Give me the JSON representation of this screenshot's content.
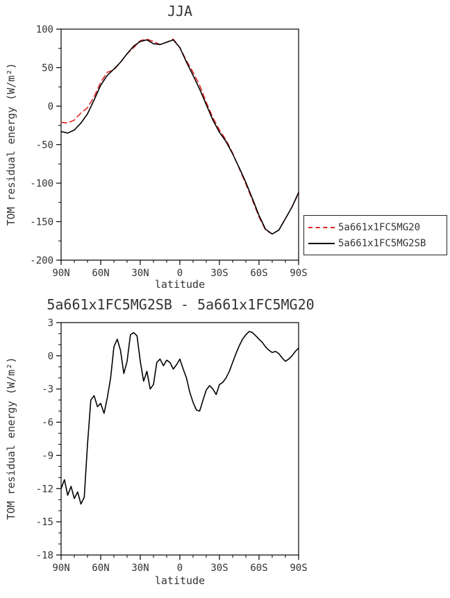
{
  "colors": {
    "series_red": "#dd2222",
    "series_black": "#000000",
    "text": "#333333",
    "frame": "#000000",
    "background": "#ffffff"
  },
  "chart_data": [
    {
      "type": "line",
      "title": "JJA",
      "xlabel": "latitude",
      "ylabel": "TOM residual energy (W/m²)",
      "ylim": [
        -200,
        100
      ],
      "yticks": [
        100,
        50,
        0,
        -50,
        -100,
        -150,
        -200
      ],
      "ytick_labels": [
        "100",
        "50",
        "0",
        "-50",
        "-100",
        "-150",
        "-200"
      ],
      "xticks": [
        90,
        60,
        30,
        0,
        -30,
        -60,
        -90
      ],
      "xtick_labels": [
        "90N",
        "60N",
        "30N",
        "0",
        "30S",
        "60S",
        "90S"
      ],
      "xminor_step": 10,
      "yminor_step": 25,
      "grid": false,
      "legend_position": "right",
      "x": [
        90,
        85,
        80,
        75,
        70,
        65,
        60,
        55,
        50,
        45,
        40,
        35,
        30,
        25,
        20,
        15,
        10,
        5,
        0,
        -5,
        -10,
        -15,
        -20,
        -25,
        -30,
        -35,
        -40,
        -45,
        -50,
        -55,
        -60,
        -65,
        -70,
        -75,
        -80,
        -85,
        -90
      ],
      "series": [
        {
          "name": "5a661x1FC5MG20",
          "color": "#dd2222",
          "dash": "8,5",
          "values": [
            -21,
            -22,
            -18,
            -9,
            -2,
            12,
            31,
            44,
            47,
            57,
            68,
            76,
            85,
            87,
            84,
            80,
            83,
            87,
            76,
            59,
            44,
            27,
            5,
            -15,
            -31,
            -44,
            -61,
            -81,
            -101,
            -122,
            -144,
            -161,
            -166,
            -161,
            -146,
            -131,
            -113
          ]
        },
        {
          "name": "5a661x1FC5MG2SB",
          "color": "#000000",
          "dash": "",
          "values": [
            -33,
            -35,
            -31,
            -22,
            -10,
            8,
            27,
            40,
            48,
            57,
            68,
            78,
            84,
            86,
            81,
            80,
            83,
            86,
            76,
            57,
            40,
            22,
            2,
            -18,
            -34,
            -46,
            -62,
            -80,
            -99,
            -120,
            -142,
            -160,
            -166,
            -161,
            -146,
            -131,
            -112
          ]
        }
      ]
    },
    {
      "type": "line",
      "title": "5a661x1FC5MG2SB - 5a661x1FC5MG20",
      "xlabel": "latitude",
      "ylabel": "TOM residual energy (W/m²)",
      "ylim": [
        -18,
        3
      ],
      "yticks": [
        3,
        0,
        -3,
        -6,
        -9,
        -12,
        -15,
        -18
      ],
      "ytick_labels": [
        "3",
        "0",
        "-3",
        "-6",
        "-9",
        "-12",
        "-15",
        "-18"
      ],
      "xticks": [
        90,
        60,
        30,
        0,
        -30,
        -60,
        -90
      ],
      "xtick_labels": [
        "90N",
        "60N",
        "30N",
        "0",
        "30S",
        "60S",
        "90S"
      ],
      "xminor_step": 10,
      "yminor_step": 1,
      "grid": false,
      "x": [
        90,
        87.5,
        85,
        82.5,
        80,
        77.5,
        75,
        72.5,
        70,
        67.5,
        65,
        62.5,
        60,
        57.5,
        55,
        52.5,
        50,
        47.5,
        45,
        42.5,
        40,
        37.5,
        35,
        32.5,
        30,
        27.5,
        25,
        22.5,
        20,
        17.5,
        15,
        12.5,
        10,
        7.5,
        5,
        2.5,
        0,
        -2.5,
        -5,
        -7.5,
        -10,
        -12.5,
        -15,
        -17.5,
        -20,
        -22.5,
        -25,
        -27.5,
        -30,
        -32.5,
        -35,
        -37.5,
        -40,
        -42.5,
        -45,
        -47.5,
        -50,
        -52.5,
        -55,
        -57.5,
        -60,
        -62.5,
        -65,
        -67.5,
        -70,
        -72.5,
        -75,
        -77.5,
        -80,
        -82.5,
        -85,
        -87.5,
        -90
      ],
      "series": [
        {
          "name": "5a661x1FC5MG2SB - 5a661x1FC5MG20",
          "color": "#000000",
          "dash": "",
          "values": [
            -12.0,
            -11.2,
            -12.6,
            -11.8,
            -12.9,
            -12.3,
            -13.4,
            -12.8,
            -8.0,
            -4.0,
            -3.6,
            -4.6,
            -4.3,
            -5.2,
            -3.8,
            -2.0,
            0.8,
            1.5,
            0.5,
            -1.6,
            -0.5,
            1.9,
            2.1,
            1.8,
            -0.5,
            -2.3,
            -1.4,
            -3.0,
            -2.6,
            -0.6,
            -0.3,
            -0.9,
            -0.4,
            -0.6,
            -1.2,
            -0.8,
            -0.3,
            -1.2,
            -2.0,
            -3.3,
            -4.2,
            -4.9,
            -5.0,
            -4.0,
            -3.1,
            -2.7,
            -3.0,
            -3.5,
            -2.6,
            -2.4,
            -2.0,
            -1.4,
            -0.6,
            0.2,
            0.9,
            1.5,
            1.9,
            2.2,
            2.1,
            1.8,
            1.5,
            1.2,
            0.8,
            0.5,
            0.3,
            0.4,
            0.2,
            -0.2,
            -0.5,
            -0.3,
            0.0,
            0.4,
            0.7
          ]
        }
      ]
    }
  ]
}
